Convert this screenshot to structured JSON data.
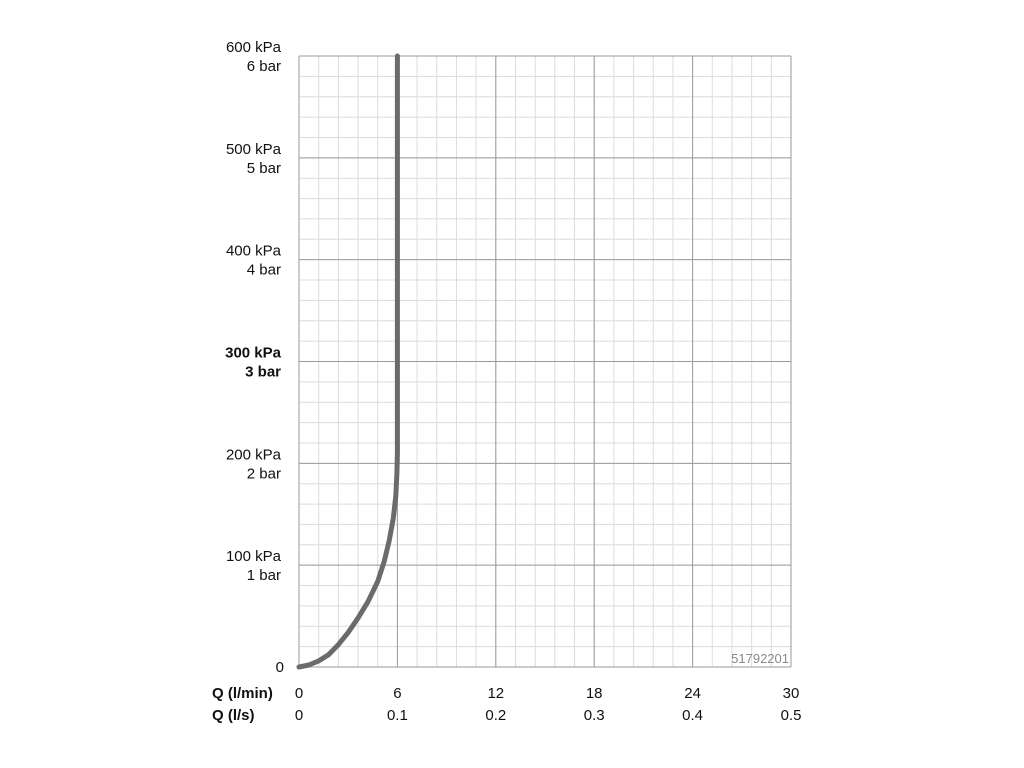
{
  "chart_data": {
    "type": "line",
    "x_unit_label": "Q (l/min)",
    "x2_unit_label": "Q (l/s)",
    "x_ticks": [
      {
        "value": 0,
        "label": "0",
        "label2": "0"
      },
      {
        "value": 6,
        "label": "6",
        "label2": "0.1"
      },
      {
        "value": 12,
        "label": "12",
        "label2": "0.2"
      },
      {
        "value": 18,
        "label": "18",
        "label2": "0.3"
      },
      {
        "value": 24,
        "label": "24",
        "label2": "0.4"
      },
      {
        "value": 30,
        "label": "30",
        "label2": "0.5"
      }
    ],
    "y_ticks": [
      {
        "value": 0,
        "label": "0",
        "label2": "",
        "bold": false
      },
      {
        "value": 100,
        "label": "100 kPa",
        "label2": "1 bar",
        "bold": false
      },
      {
        "value": 200,
        "label": "200 kPa",
        "label2": "2 bar",
        "bold": false
      },
      {
        "value": 300,
        "label": "300 kPa",
        "label2": "3 bar",
        "bold": true
      },
      {
        "value": 400,
        "label": "400 kPa",
        "label2": "4 bar",
        "bold": false
      },
      {
        "value": 500,
        "label": "500 kPa",
        "label2": "5 bar",
        "bold": false
      },
      {
        "value": 600,
        "label": "600 kPa",
        "label2": "6 bar",
        "bold": false
      }
    ],
    "xlim": [
      0,
      30
    ],
    "ylim": [
      0,
      600
    ],
    "grid": true,
    "series": [
      {
        "color": "#6b6b6b",
        "points": [
          [
            0,
            0
          ],
          [
            0.6,
            2
          ],
          [
            1.2,
            6
          ],
          [
            1.8,
            12
          ],
          [
            2.4,
            22
          ],
          [
            3.0,
            34
          ],
          [
            3.6,
            48
          ],
          [
            4.2,
            64
          ],
          [
            4.8,
            84
          ],
          [
            5.2,
            104
          ],
          [
            5.5,
            124
          ],
          [
            5.75,
            146
          ],
          [
            5.9,
            168
          ],
          [
            5.97,
            190
          ],
          [
            6.0,
            210
          ],
          [
            6.0,
            300
          ],
          [
            6.0,
            400
          ],
          [
            6.0,
            500
          ],
          [
            6.0,
            600
          ]
        ]
      }
    ],
    "watermark": "51792201"
  }
}
